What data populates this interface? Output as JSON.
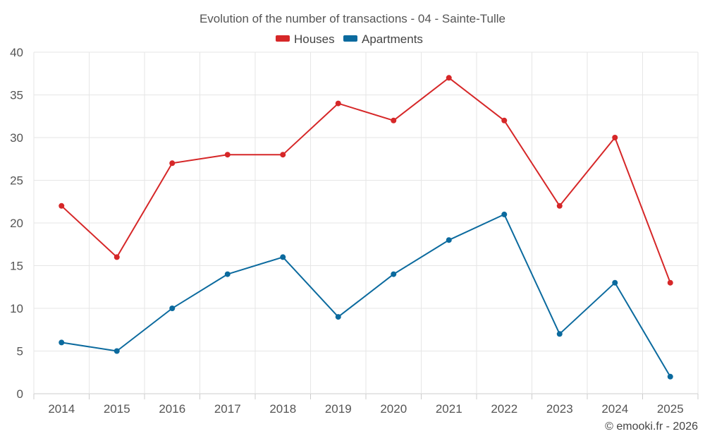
{
  "chart_data": {
    "type": "line",
    "title": "Evolution of the number of transactions - 04 - Sainte-Tulle",
    "categories": [
      "2014",
      "2015",
      "2016",
      "2017",
      "2018",
      "2019",
      "2020",
      "2021",
      "2022",
      "2023",
      "2024",
      "2025"
    ],
    "series": [
      {
        "name": "Houses",
        "color": "#d62728",
        "values": [
          22,
          16,
          27,
          28,
          28,
          34,
          32,
          37,
          32,
          22,
          30,
          13
        ]
      },
      {
        "name": "Apartments",
        "color": "#0b6a9e",
        "values": [
          6,
          5,
          10,
          14,
          16,
          9,
          14,
          18,
          21,
          7,
          13,
          2
        ]
      }
    ],
    "ylim": [
      0,
      40
    ],
    "yticks": [
      0,
      5,
      10,
      15,
      20,
      25,
      30,
      35,
      40
    ],
    "grid": true,
    "legend": "top-center"
  },
  "credit": "© emooki.fr - 2026"
}
